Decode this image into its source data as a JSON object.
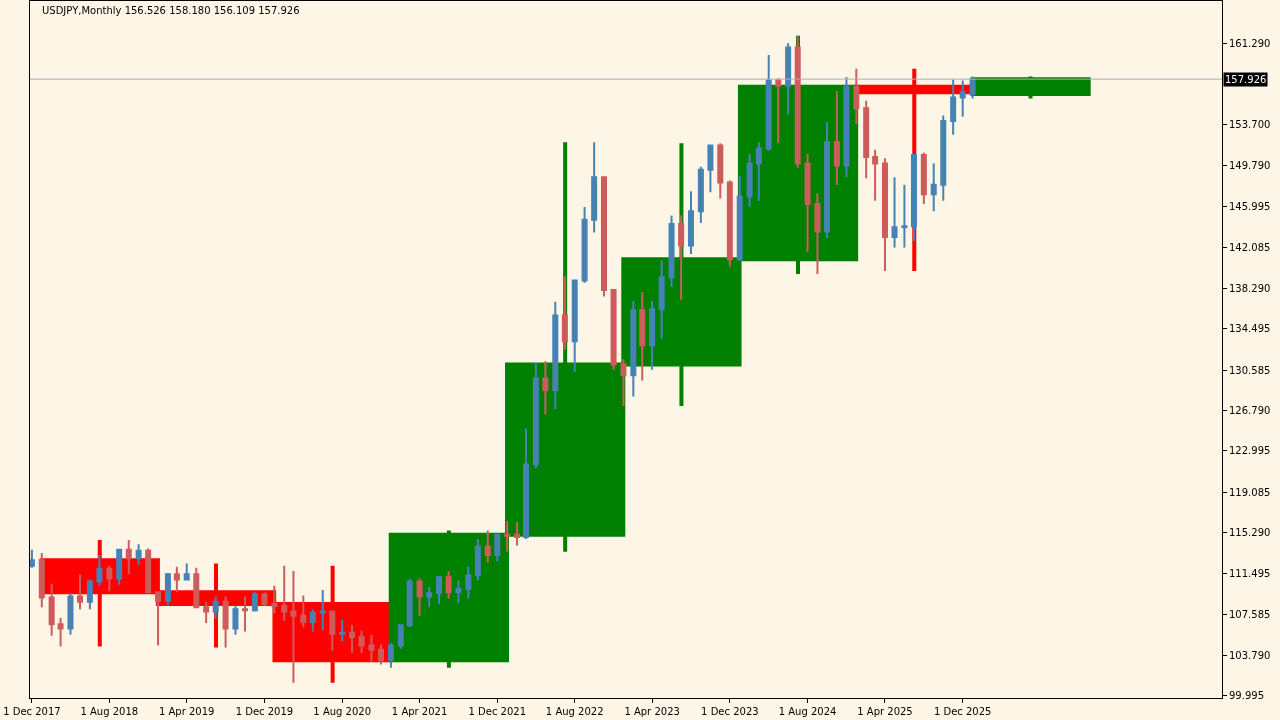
{
  "chart_data": {
    "type": "candlestick",
    "title": "USDJPY,Monthly 156.526 158.180 156.109 157.926",
    "xlim": [
      "2017-11-25",
      "2028-02-23"
    ],
    "xticks": [
      {
        "value": "2017-12-01",
        "label": "1 Dec 2017"
      },
      {
        "value": "2018-08-01",
        "label": "1 Aug 2018"
      },
      {
        "value": "2019-04-01",
        "label": "1 Apr 2019"
      },
      {
        "value": "2019-12-01",
        "label": "1 Dec 2019"
      },
      {
        "value": "2020-08-01",
        "label": "1 Aug 2020"
      },
      {
        "value": "2021-04-01",
        "label": "1 Apr 2021"
      },
      {
        "value": "2021-12-01",
        "label": "1 Dec 2021"
      },
      {
        "value": "2022-08-01",
        "label": "1 Aug 2022"
      },
      {
        "value": "2023-04-01",
        "label": "1 Apr 2023"
      },
      {
        "value": "2023-12-01",
        "label": "1 Dec 2023"
      },
      {
        "value": "2024-08-01",
        "label": "1 Aug 2024"
      },
      {
        "value": "2025-04-01",
        "label": "1 Apr 2025"
      },
      {
        "value": "2025-12-01",
        "label": "1 Dec 2025"
      }
    ],
    "ylim": [
      99.76,
      165.27
    ],
    "yticks": [
      99.995,
      {
        "value": 103.79,
        "label": "103.790"
      },
      107.585,
      111.495,
      {
        "value": 115.29,
        "label": "115.290"
      },
      119.085,
      122.995,
      {
        "value": 126.79,
        "label": "126.790"
      },
      130.585,
      134.495,
      {
        "value": 138.29,
        "label": "138.290"
      },
      142.085,
      145.995,
      {
        "value": 149.79,
        "label": "149.790"
      },
      {
        "value": 153.7,
        "label": "153.700"
      },
      {
        "value": 161.29,
        "label": "161.290"
      }
    ],
    "series": [
      {
        "x": [
          "2017-12",
          "2018-01",
          "2018-02",
          "2018-03",
          "2018-04",
          "2018-05",
          "2018-06",
          "2018-07",
          "2018-08",
          "2018-09",
          "2018-10",
          "2018-11",
          "2018-12",
          "2019-01",
          "2019-02",
          "2019-03",
          "2019-04",
          "2019-05",
          "2019-06",
          "2019-07",
          "2019-08",
          "2019-09",
          "2019-10",
          "2019-11",
          "2019-12",
          "2020-01",
          "2020-02",
          "2020-03",
          "2020-04",
          "2020-05",
          "2020-06",
          "2020-07",
          "2020-08",
          "2020-09",
          "2020-10",
          "2020-11",
          "2020-12",
          "2021-01",
          "2021-02",
          "2021-03",
          "2021-04",
          "2021-05",
          "2021-06",
          "2021-07",
          "2021-08",
          "2021-09",
          "2021-10",
          "2021-11",
          "2021-12",
          "2022-01",
          "2022-02",
          "2022-03",
          "2022-04",
          "2022-05",
          "2022-06",
          "2022-07",
          "2022-08",
          "2022-09",
          "2022-10",
          "2022-11",
          "2022-12",
          "2023-01",
          "2023-02",
          "2023-03",
          "2023-04",
          "2023-05",
          "2023-06",
          "2023-07",
          "2023-08",
          "2023-09",
          "2023-10",
          "2023-11",
          "2023-12",
          "2024-01",
          "2024-02",
          "2024-03",
          "2024-04",
          "2024-05",
          "2024-06",
          "2024-07",
          "2024-08",
          "2024-09",
          "2024-10",
          "2024-11",
          "2024-12",
          "2025-01",
          "2025-02",
          "2025-03",
          "2025-04",
          "2025-05",
          "2025-06",
          "2025-07",
          "2025-08",
          "2025-09",
          "2025-10",
          "2025-11",
          "2025-12",
          "2026-01"
        ],
        "ohlc": [
          [
            112.2,
            113.7,
            112.0,
            112.7
          ],
          [
            112.7,
            113.4,
            108.3,
            109.2
          ],
          [
            109.2,
            110.5,
            105.6,
            106.7
          ],
          [
            106.7,
            107.3,
            104.6,
            106.3
          ],
          [
            106.3,
            109.6,
            105.7,
            109.3
          ],
          [
            109.3,
            111.4,
            108.1,
            108.8
          ],
          [
            108.8,
            110.9,
            108.1,
            110.7
          ],
          [
            110.7,
            113.2,
            110.3,
            111.9
          ],
          [
            111.9,
            112.2,
            109.8,
            111.0
          ],
          [
            111.0,
            113.7,
            110.4,
            113.7
          ],
          [
            113.7,
            114.6,
            111.4,
            112.9
          ],
          [
            112.9,
            114.2,
            112.3,
            113.6
          ],
          [
            113.6,
            113.8,
            109.6,
            109.7
          ],
          [
            109.7,
            109.7,
            104.7,
            108.9
          ],
          [
            108.9,
            111.5,
            108.5,
            111.4
          ],
          [
            111.4,
            112.1,
            109.7,
            110.9
          ],
          [
            110.9,
            112.4,
            110.8,
            111.4
          ],
          [
            111.4,
            112.0,
            108.3,
            108.3
          ],
          [
            108.3,
            108.8,
            106.8,
            107.9
          ],
          [
            107.9,
            109.3,
            107.2,
            108.8
          ],
          [
            108.8,
            109.3,
            104.5,
            106.3
          ],
          [
            106.3,
            108.5,
            105.7,
            108.1
          ],
          [
            108.1,
            109.3,
            106.0,
            108.0
          ],
          [
            108.0,
            109.7,
            107.9,
            109.5
          ],
          [
            109.5,
            109.7,
            108.4,
            108.6
          ],
          [
            108.6,
            110.3,
            107.7,
            108.4
          ],
          [
            108.4,
            112.2,
            107.0,
            107.9
          ],
          [
            107.9,
            111.7,
            101.2,
            107.5
          ],
          [
            107.5,
            109.4,
            106.4,
            106.9
          ],
          [
            106.9,
            108.1,
            106.0,
            107.8
          ],
          [
            107.8,
            109.9,
            106.1,
            107.9
          ],
          [
            107.9,
            107.9,
            104.2,
            105.8
          ],
          [
            105.8,
            107.1,
            105.1,
            105.9
          ],
          [
            105.9,
            106.6,
            104.0,
            105.5
          ],
          [
            105.5,
            106.1,
            104.0,
            104.7
          ],
          [
            104.7,
            105.7,
            103.2,
            104.3
          ],
          [
            104.3,
            104.8,
            102.9,
            103.3
          ],
          [
            103.3,
            104.9,
            102.6,
            104.7
          ],
          [
            104.7,
            106.7,
            104.4,
            106.6
          ],
          [
            106.6,
            111.0,
            106.4,
            110.7
          ],
          [
            110.7,
            111.0,
            107.5,
            109.3
          ],
          [
            109.3,
            110.2,
            108.3,
            109.6
          ],
          [
            109.6,
            111.1,
            108.6,
            111.1
          ],
          [
            111.1,
            111.7,
            109.1,
            109.7
          ],
          [
            109.7,
            110.8,
            108.7,
            110.0
          ],
          [
            110.0,
            112.1,
            109.1,
            111.3
          ],
          [
            111.3,
            114.7,
            110.8,
            114.0
          ],
          [
            114.0,
            115.5,
            112.5,
            113.2
          ],
          [
            113.2,
            115.2,
            112.6,
            115.1
          ],
          [
            115.1,
            116.4,
            113.5,
            115.0
          ],
          [
            115.1,
            116.3,
            114.1,
            114.9
          ],
          [
            114.9,
            125.1,
            114.7,
            121.7
          ],
          [
            121.7,
            131.3,
            121.3,
            129.8
          ],
          [
            129.8,
            131.4,
            126.4,
            128.7
          ],
          [
            128.7,
            137.0,
            126.9,
            135.7
          ],
          [
            135.7,
            139.4,
            132.5,
            133.3
          ],
          [
            133.3,
            139.1,
            130.4,
            139.0
          ],
          [
            139.0,
            145.9,
            138.8,
            144.7
          ],
          [
            144.7,
            152.0,
            143.5,
            148.7
          ],
          [
            148.7,
            148.8,
            137.5,
            138.1
          ],
          [
            138.1,
            138.2,
            130.6,
            131.1
          ],
          [
            131.1,
            131.6,
            127.2,
            130.1
          ],
          [
            130.1,
            137.1,
            128.1,
            136.2
          ],
          [
            136.2,
            137.9,
            129.6,
            132.9
          ],
          [
            132.9,
            137.1,
            130.6,
            136.3
          ],
          [
            136.3,
            140.9,
            133.5,
            139.3
          ],
          [
            139.3,
            145.1,
            138.4,
            144.3
          ],
          [
            144.3,
            145.1,
            137.2,
            142.3
          ],
          [
            142.3,
            147.4,
            141.5,
            145.5
          ],
          [
            145.5,
            149.7,
            144.4,
            149.4
          ],
          [
            149.4,
            151.7,
            147.3,
            151.7
          ],
          [
            151.7,
            151.9,
            146.7,
            148.2
          ],
          [
            148.2,
            148.4,
            140.3,
            141.0
          ],
          [
            141.0,
            148.8,
            140.8,
            146.9
          ],
          [
            146.9,
            150.9,
            145.9,
            150.0
          ],
          [
            150.0,
            152.0,
            146.5,
            151.4
          ],
          [
            151.4,
            160.2,
            151.2,
            157.8
          ],
          [
            157.8,
            158.0,
            151.9,
            157.3
          ],
          [
            157.3,
            161.3,
            154.6,
            160.9
          ],
          [
            160.9,
            162.0,
            149.6,
            150.0
          ],
          [
            150.0,
            150.9,
            141.7,
            146.2
          ],
          [
            146.2,
            147.2,
            139.6,
            143.6
          ],
          [
            143.6,
            153.9,
            143.0,
            152.0
          ],
          [
            152.0,
            156.8,
            148.0,
            149.8
          ],
          [
            149.8,
            158.1,
            148.7,
            157.2
          ],
          [
            157.2,
            158.9,
            153.7,
            155.2
          ],
          [
            155.2,
            155.9,
            148.6,
            150.6
          ],
          [
            150.6,
            151.3,
            146.5,
            150.0
          ],
          [
            150.0,
            150.5,
            139.9,
            143.1
          ],
          [
            143.1,
            148.7,
            142.1,
            144.0
          ],
          [
            144.0,
            148.0,
            142.1,
            144.1
          ],
          [
            144.1,
            150.9,
            142.7,
            150.8
          ],
          [
            150.8,
            151.0,
            146.2,
            147.1
          ],
          [
            147.1,
            150.0,
            145.5,
            148.0
          ],
          [
            148.0,
            154.5,
            146.5,
            154.0
          ],
          [
            154.0,
            157.9,
            152.7,
            156.2
          ],
          [
            156.2,
            157.8,
            154.4,
            156.7
          ],
          [
            156.526,
            158.18,
            156.109,
            157.926
          ]
        ],
        "colors": [
          "#4682b4",
          "#cd5c5c",
          "#cd5c5c",
          "#cd5c5c",
          "#4682b4",
          "#cd5c5c",
          "#4682b4",
          "#4682b4",
          "#cd5c5c",
          "#4682b4",
          "#cd5c5c",
          "#4682b4",
          "#cd5c5c",
          "#cd5c5c",
          "#4682b4",
          "#cd5c5c",
          "#4682b4",
          "#cd5c5c",
          "#cd5c5c",
          "#4682b4",
          "#cd5c5c",
          "#4682b4",
          "#cd5c5c",
          "#4682b4",
          "#cd5c5c",
          "#cd5c5c",
          "#cd5c5c",
          "#cd5c5c",
          "#cd5c5c",
          "#4682b4",
          "#4682b4",
          "#cd5c5c",
          "#4682b4",
          "#cd5c5c",
          "#cd5c5c",
          "#cd5c5c",
          "#cd5c5c",
          "#4682b4",
          "#4682b4",
          "#4682b4",
          "#cd5c5c",
          "#4682b4",
          "#4682b4",
          "#cd5c5c",
          "#4682b4",
          "#4682b4",
          "#4682b4",
          "#cd5c5c",
          "#4682b4",
          "#cd5c5c",
          "#cd5c5c",
          "#4682b4",
          "#4682b4",
          "#cd5c5c",
          "#4682b4",
          "#cd5c5c",
          "#4682b4",
          "#4682b4",
          "#4682b4",
          "#cd5c5c",
          "#cd5c5c",
          "#cd5c5c",
          "#4682b4",
          "#cd5c5c",
          "#4682b4",
          "#4682b4",
          "#4682b4",
          "#cd5c5c",
          "#4682b4",
          "#4682b4",
          "#4682b4",
          "#cd5c5c",
          "#cd5c5c",
          "#4682b4",
          "#4682b4",
          "#4682b4",
          "#4682b4",
          "#cd5c5c",
          "#4682b4",
          "#cd5c5c",
          "#cd5c5c",
          "#cd5c5c",
          "#4682b4",
          "#cd5c5c",
          "#4682b4",
          "#cd5c5c",
          "#cd5c5c",
          "#cd5c5c",
          "#cd5c5c",
          "#4682b4",
          "#4682b4",
          "#4682b4",
          "#cd5c5c",
          "#4682b4",
          "#4682b4",
          "#4682b4",
          "#4682b4",
          "#4682b4"
        ]
      },
      {
        "x": [
          "2018-07-02",
          "2019-07-02",
          "2020-07-02",
          "2021-07-02",
          "2022-07-02",
          "2023-07-02",
          "2024-07-02",
          "2025-07-02",
          "2026-07-02"
        ],
        "ohlc": [
          [
            112.7,
            114.6,
            104.6,
            109.7
          ],
          [
            109.7,
            112.4,
            104.5,
            108.6
          ],
          [
            108.6,
            112.2,
            101.2,
            103.3
          ],
          [
            103.3,
            115.5,
            102.6,
            115.1
          ],
          [
            115.1,
            152.0,
            113.5,
            131.1
          ],
          [
            131.1,
            151.9,
            127.2,
            141.0
          ],
          [
            141.0,
            162.0,
            139.6,
            157.2
          ],
          [
            157.2,
            158.9,
            139.9,
            156.7
          ],
          [
            156.526,
            158.18,
            156.109,
            157.926
          ]
        ],
        "colors": [
          "#ff0000",
          "#ff0000",
          "#ff0000",
          "#008000",
          "#008000",
          "#008000",
          "#008000",
          "#ff0000",
          "#008000"
        ]
      }
    ],
    "ref_lines": [
      {
        "axis": "y",
        "value": 157.926,
        "label": "157.926",
        "color": "#a9b0bb"
      }
    ]
  }
}
